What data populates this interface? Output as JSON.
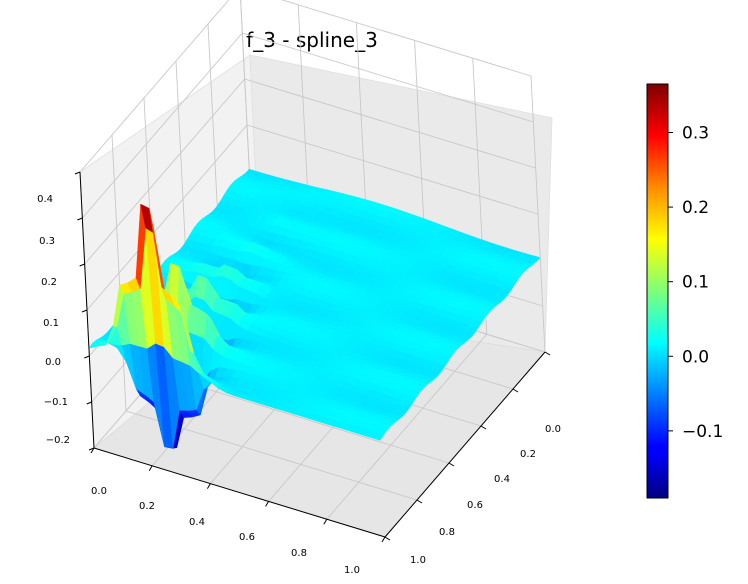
{
  "chart_data": {
    "type": "surface3d",
    "title": "f_3 - spline_3",
    "colormap": "jet",
    "grid": true,
    "x_axis": {
      "range": [
        0.0,
        1.0
      ],
      "ticks": [
        "0.0",
        "0.2",
        "0.4",
        "0.6",
        "0.8",
        "1.0"
      ]
    },
    "y_axis": {
      "range": [
        0.0,
        1.0
      ],
      "ticks": [
        "0.0",
        "0.2",
        "0.4",
        "0.6",
        "0.8",
        "1.0"
      ]
    },
    "z_axis": {
      "range": [
        -0.2,
        0.4
      ],
      "ticks": [
        "−0.2",
        "−0.1",
        "0.0",
        "0.1",
        "0.2",
        "0.3",
        "0.4"
      ]
    },
    "colorbar": {
      "range": [
        -0.19,
        0.365
      ],
      "ticks": [
        {
          "label": "−0.1",
          "value": -0.1
        },
        {
          "label": "0.0",
          "value": 0.0
        },
        {
          "label": "0.1",
          "value": 0.1
        },
        {
          "label": "0.2",
          "value": 0.2
        },
        {
          "label": "0.3",
          "value": 0.3
        }
      ]
    },
    "surface": {
      "base_value": 0.01,
      "oscillation_center_x": 0.22,
      "oscillation_decay": 0.2,
      "oscillation_frequency": 40,
      "max_value": 0.37,
      "min_value": -0.19
    }
  }
}
